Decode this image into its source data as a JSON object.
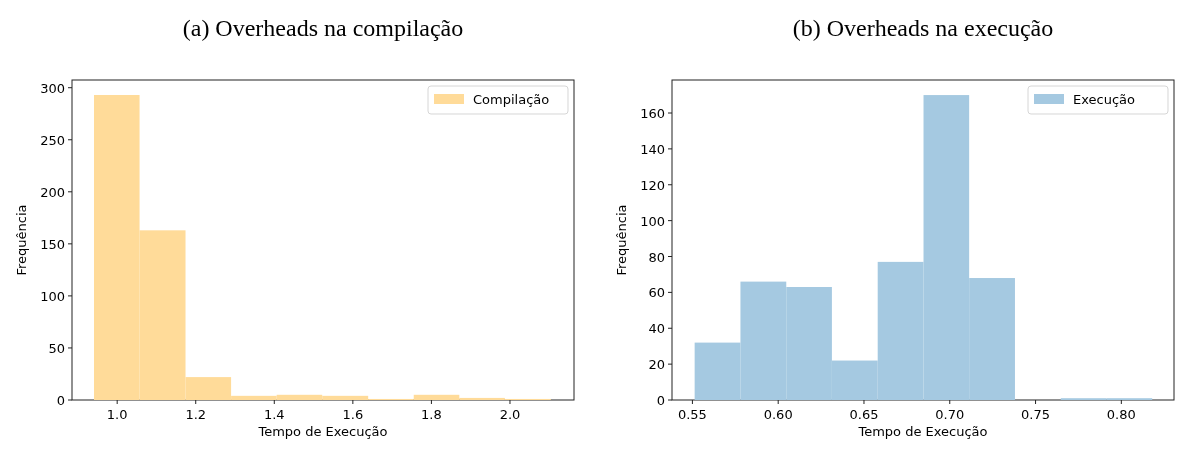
{
  "chart_data": [
    {
      "type": "histogram",
      "title": "(a) Overheads na compilação",
      "xlabel": "Tempo de Execução",
      "ylabel": "Frequência",
      "bins": [
        0.941,
        1.057,
        1.174,
        1.29,
        1.406,
        1.522,
        1.639,
        1.755,
        1.871,
        1.987,
        2.104
      ],
      "series": [
        {
          "name": "Compilação",
          "color": "#ffdb99",
          "values": [
            293,
            163,
            22,
            4,
            5,
            4,
            1,
            5,
            2,
            1
          ]
        }
      ],
      "xlim": [
        0.885,
        2.163
      ],
      "xticks": [
        {
          "value": 1.0,
          "label": "1.0"
        },
        {
          "value": 1.2,
          "label": "1.2"
        },
        {
          "value": 1.4,
          "label": "1.4"
        },
        {
          "value": 1.6,
          "label": "1.6"
        },
        {
          "value": 1.8,
          "label": "1.8"
        },
        {
          "value": 2.0,
          "label": "2.0"
        }
      ],
      "ylim": [
        0,
        307.4
      ],
      "yticks": [
        0,
        50,
        100,
        150,
        200,
        250,
        300
      ],
      "legend": "top right",
      "grid": false
    },
    {
      "type": "histogram",
      "title": "(b) Overheads na execução",
      "xlabel": "Tempo de Execução",
      "ylabel": "Frequência",
      "bins": [
        0.5513,
        0.578,
        0.6047,
        0.6313,
        0.658,
        0.6847,
        0.7113,
        0.738,
        0.7647,
        0.7913,
        0.818
      ],
      "series": [
        {
          "name": "Execução",
          "color": "#a5c9e1",
          "values": [
            32,
            66,
            63,
            22,
            77,
            170,
            68,
            0,
            1,
            1
          ]
        }
      ],
      "xlim": [
        0.5381,
        0.8307
      ],
      "xticks": [
        {
          "value": 0.55,
          "label": "0.55"
        },
        {
          "value": 0.6,
          "label": "0.60"
        },
        {
          "value": 0.65,
          "label": "0.65"
        },
        {
          "value": 0.7,
          "label": "0.70"
        },
        {
          "value": 0.75,
          "label": "0.75"
        },
        {
          "value": 0.8,
          "label": "0.80"
        }
      ],
      "ylim": [
        0,
        178.4
      ],
      "yticks": [
        0,
        20,
        40,
        60,
        80,
        100,
        120,
        140,
        160
      ],
      "legend": "top right",
      "grid": false
    }
  ]
}
